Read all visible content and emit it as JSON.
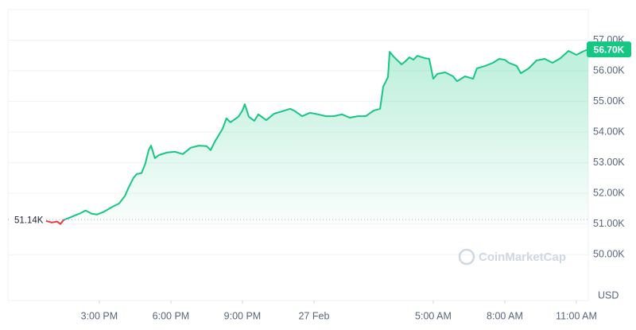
{
  "chart_data": {
    "type": "line",
    "color": "#16c784",
    "below_color": "#ea3943",
    "x": [
      0.77,
      1,
      1.23,
      1.37,
      1.5,
      1.83,
      2.17,
      2.43,
      2.67,
      2.9,
      3.17,
      3.5,
      3.83,
      4.07,
      4.23,
      4.43,
      4.57,
      4.77,
      4.93,
      5.07,
      5.17,
      5.33,
      5.5,
      5.83,
      6.17,
      6.5,
      6.83,
      7.17,
      7.5,
      7.67,
      7.83,
      8.17,
      8.33,
      8.5,
      8.83,
      9,
      9.1,
      9.27,
      9.5,
      9.67,
      10,
      10.33,
      10.67,
      11,
      11.17,
      11.5,
      11.83,
      12.17,
      12.5,
      12.83,
      13.17,
      13.5,
      13.83,
      14.17,
      14.5,
      14.77,
      14.9,
      15.1,
      15.17,
      15.33,
      15.67,
      15.83,
      16,
      16.17,
      16.33,
      16.67,
      16.83,
      17,
      17.17,
      17.5,
      17.83,
      18,
      18.33,
      18.67,
      18.83,
      19.17,
      19.5,
      19.77,
      20,
      20.17,
      20.5,
      20.67,
      21,
      21.33,
      21.67,
      22,
      22.33,
      22.67,
      23,
      23.33,
      23.5
    ],
    "values": [
      51.1,
      51.05,
      51.08,
      51.0,
      51.13,
      51.23,
      51.34,
      51.44,
      51.34,
      51.31,
      51.39,
      51.54,
      51.67,
      51.91,
      52.19,
      52.5,
      52.63,
      52.66,
      52.97,
      53.41,
      53.56,
      53.15,
      53.25,
      53.33,
      53.36,
      53.28,
      53.49,
      53.56,
      53.54,
      53.41,
      53.67,
      54.11,
      54.45,
      54.32,
      54.5,
      54.7,
      54.91,
      54.5,
      54.37,
      54.58,
      54.39,
      54.6,
      54.68,
      54.76,
      54.7,
      54.52,
      54.63,
      54.58,
      54.52,
      54.52,
      54.58,
      54.47,
      54.52,
      54.52,
      54.7,
      54.76,
      55.48,
      55.79,
      56.62,
      56.47,
      56.21,
      56.31,
      56.44,
      56.36,
      56.49,
      56.41,
      56.39,
      55.74,
      55.9,
      55.95,
      55.82,
      55.66,
      55.82,
      55.74,
      56.08,
      56.16,
      56.26,
      56.39,
      56.36,
      56.26,
      56.16,
      55.92,
      56.08,
      56.34,
      56.39,
      56.26,
      56.41,
      56.65,
      56.52,
      56.65,
      56.7
    ],
    "xlim": [
      -0.83,
      23.5
    ],
    "xticks": [
      {
        "value": 3,
        "label": "3:00 PM"
      },
      {
        "value": 6,
        "label": "6:00 PM"
      },
      {
        "value": 9,
        "label": "9:00 PM"
      },
      {
        "value": 12,
        "label": "27 Feb"
      },
      {
        "value": 17,
        "label": "5:00 AM"
      },
      {
        "value": 20,
        "label": "8:00 AM"
      },
      {
        "value": 23,
        "label": "11:00 AM"
      }
    ],
    "ylim": [
      48.5,
      58
    ],
    "yticks": [
      {
        "value": 50,
        "label": "50.00K"
      },
      {
        "value": 51,
        "label": "51.00K"
      },
      {
        "value": 52,
        "label": "52.00K"
      },
      {
        "value": 53,
        "label": "53.00K"
      },
      {
        "value": 54,
        "label": "54.00K"
      },
      {
        "value": 55,
        "label": "55.00K"
      },
      {
        "value": 56,
        "label": "56.00K"
      },
      {
        "value": 57,
        "label": "57.00K"
      }
    ],
    "baseline": {
      "value": 51.14,
      "label": "51.14K"
    },
    "price_label": "56.70K",
    "y_unit": "USD",
    "watermark": "CoinMarketCap",
    "grid": true
  }
}
